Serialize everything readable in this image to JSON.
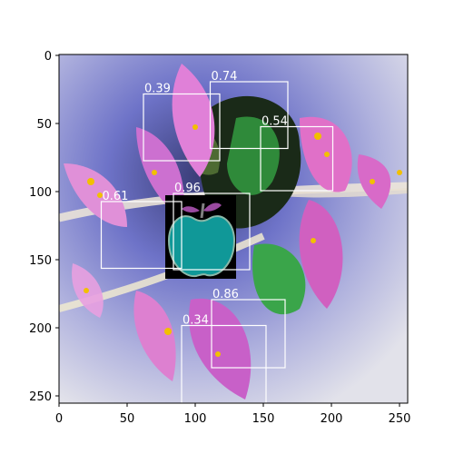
{
  "figure": {
    "x_ticks": [
      "0",
      "50",
      "100",
      "150",
      "200",
      "250"
    ],
    "y_ticks": [
      "0",
      "50",
      "100",
      "150",
      "200",
      "250"
    ],
    "x_range": [
      0,
      256
    ],
    "y_range": [
      256,
      0
    ],
    "detections": [
      {
        "score": "0.39",
        "x0": 62,
        "y0": 29,
        "x1": 118,
        "y1": 78
      },
      {
        "score": "0.74",
        "x0": 111,
        "y0": 20,
        "x1": 168,
        "y1": 69
      },
      {
        "score": "0.54",
        "x0": 148,
        "y0": 53,
        "x1": 201,
        "y1": 100
      },
      {
        "score": "0.61",
        "x0": 31,
        "y0": 108,
        "x1": 90,
        "y1": 157
      },
      {
        "score": "0.96",
        "x0": 84,
        "y0": 102,
        "x1": 140,
        "y1": 158
      },
      {
        "score": "0.86",
        "x0": 112,
        "y0": 180,
        "x1": 166,
        "y1": 230
      },
      {
        "score": "0.34",
        "x0": 90,
        "y0": 199,
        "x1": 152,
        "y1": 256
      }
    ],
    "object_icon": "apple-icon"
  }
}
